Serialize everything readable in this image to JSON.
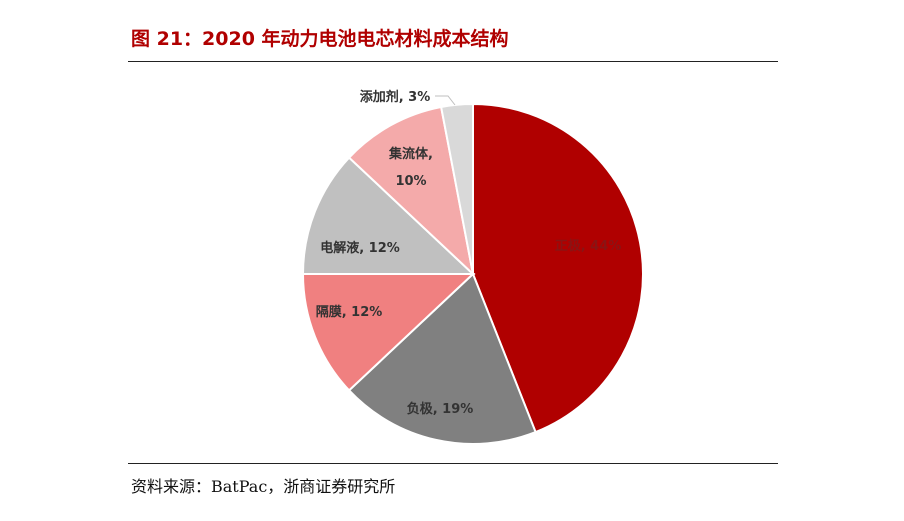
{
  "title": "图 21：2020 年动力电池电芯材料成本结构",
  "source": "资料来源：BatPac，浙商证券研究所",
  "chart_data": {
    "type": "pie",
    "title": "",
    "start_angle_deg": 0,
    "direction": "clockwise",
    "slices": [
      {
        "name": "正极",
        "value": 44,
        "label": "正极, 44%",
        "color": "#b00000"
      },
      {
        "name": "负极",
        "value": 19,
        "label": "负极, 19%",
        "color": "#808080"
      },
      {
        "name": "隔膜",
        "value": 12,
        "label": "隔膜, 12%",
        "color": "#f08080"
      },
      {
        "name": "电解液",
        "value": 12,
        "label": "电解液, 12%",
        "color": "#c0c0c0"
      },
      {
        "name": "集流体",
        "value": 10,
        "label_lines": [
          "集流体,",
          "10%"
        ],
        "color": "#f4aaaa"
      },
      {
        "name": "添加剂",
        "value": 3,
        "label": "添加剂, 3%",
        "color": "#d9d9d9"
      }
    ]
  }
}
